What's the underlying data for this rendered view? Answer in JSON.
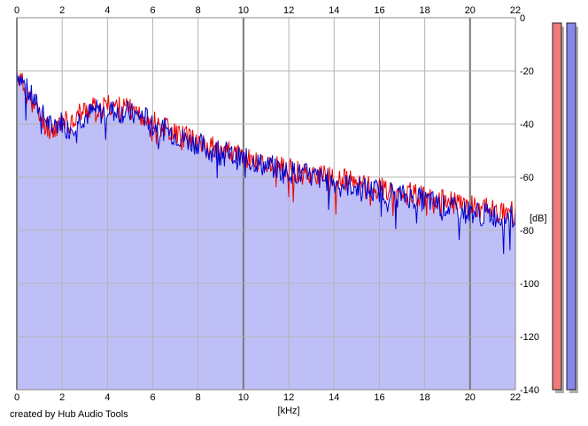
{
  "credit_text": "created by Hub Audio Tools",
  "colors": {
    "fill": "#bfbff8",
    "left_channel": "#ee0000",
    "right_channel": "#0000cc",
    "grid": "#b4b4b4",
    "meter_left": "#ee7a7a",
    "meter_right": "#8686ee",
    "meter_shadow": "#b0b0b0"
  },
  "chart_data": {
    "type": "line",
    "xlabel": "[kHz]",
    "ylabel": "[dB]",
    "xlim": [
      0,
      22
    ],
    "ylim": [
      -140,
      0
    ],
    "x_ticks": [
      0,
      2,
      4,
      6,
      8,
      10,
      12,
      14,
      16,
      18,
      20,
      22
    ],
    "y_ticks": [
      0,
      -20,
      -40,
      -60,
      -80,
      -100,
      -120,
      -140
    ],
    "grid": true,
    "x": [
      0,
      0.25,
      0.5,
      0.75,
      1,
      1.25,
      1.5,
      1.75,
      2,
      2.25,
      2.5,
      2.75,
      3,
      3.25,
      3.5,
      3.75,
      4,
      4.25,
      4.5,
      4.75,
      5,
      5.25,
      5.5,
      5.75,
      6,
      6.25,
      6.5,
      6.75,
      7,
      7.25,
      7.5,
      7.75,
      8,
      8.25,
      8.5,
      8.75,
      9,
      9.25,
      9.5,
      9.75,
      10,
      10.25,
      10.5,
      10.75,
      11,
      11.25,
      11.5,
      11.75,
      12,
      12.25,
      12.5,
      12.75,
      13,
      13.25,
      13.5,
      13.75,
      14,
      14.25,
      14.5,
      14.75,
      15,
      15.25,
      15.5,
      15.75,
      16,
      16.25,
      16.5,
      16.75,
      17,
      17.25,
      17.5,
      17.75,
      18,
      18.25,
      18.5,
      18.75,
      19,
      19.25,
      19.5,
      19.75,
      20,
      20.25,
      20.5,
      20.75,
      21,
      21.25,
      21.5,
      21.75,
      22
    ],
    "series": [
      {
        "color_key": "right_channel",
        "values": [
          -20,
          -24,
          -28,
          -31,
          -35,
          -38,
          -41,
          -40,
          -39,
          -42,
          -40,
          -38,
          -37,
          -36,
          -35,
          -36,
          -34,
          -35,
          -36,
          -35,
          -36,
          -37,
          -37,
          -38,
          -40,
          -41,
          -42,
          -43,
          -44,
          -45,
          -46,
          -47,
          -47,
          -49,
          -50,
          -50,
          -49,
          -51,
          -52,
          -53,
          -53,
          -54,
          -54,
          -55,
          -56,
          -56,
          -57,
          -58,
          -58,
          -58,
          -59,
          -59,
          -60,
          -60,
          -61,
          -61,
          -62,
          -62,
          -63,
          -63,
          -64,
          -64,
          -65,
          -65,
          -65,
          -66,
          -66,
          -66,
          -67,
          -67,
          -68,
          -68,
          -69,
          -69,
          -70,
          -71,
          -71,
          -72,
          -72,
          -73,
          -73,
          -73,
          -74,
          -74,
          -74,
          -75,
          -75,
          -75,
          -75
        ]
      },
      {
        "color_key": "left_channel",
        "values": [
          -21,
          -25,
          -29,
          -33,
          -37,
          -40,
          -42,
          -41,
          -38,
          -40,
          -38,
          -36,
          -35,
          -34,
          -34,
          -34,
          -33,
          -33,
          -34,
          -34,
          -35,
          -36,
          -36,
          -37,
          -39,
          -40,
          -41,
          -42,
          -43,
          -44,
          -45,
          -45,
          -46,
          -48,
          -49,
          -49,
          -48,
          -50,
          -51,
          -52,
          -53,
          -53,
          -54,
          -55,
          -55,
          -56,
          -56,
          -57,
          -57,
          -58,
          -58,
          -59,
          -59,
          -59,
          -60,
          -60,
          -61,
          -61,
          -61,
          -62,
          -62,
          -63,
          -63,
          -64,
          -64,
          -65,
          -65,
          -65,
          -66,
          -66,
          -66,
          -67,
          -68,
          -68,
          -68,
          -69,
          -69,
          -70,
          -70,
          -71,
          -71,
          -71,
          -72,
          -72,
          -72,
          -73,
          -73,
          -73,
          -74
        ]
      }
    ],
    "level_meters": [
      {
        "channel": "left",
        "color_key": "meter_left",
        "level": 1.0
      },
      {
        "channel": "right",
        "color_key": "meter_right",
        "level": 1.0
      }
    ]
  }
}
